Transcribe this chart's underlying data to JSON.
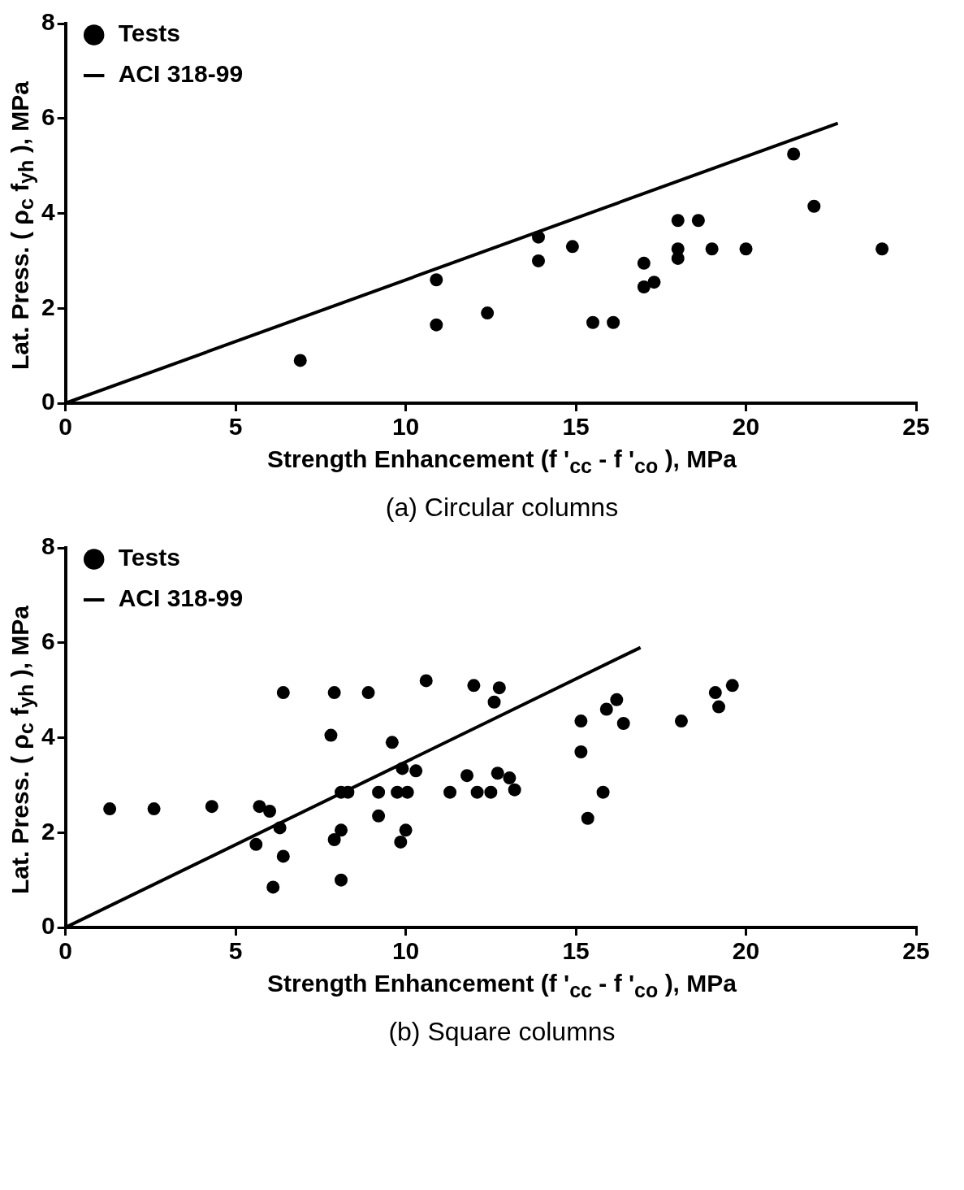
{
  "chart_data": [
    {
      "type": "scatter",
      "xlabel": "Strength Enhancement (f '$_{cc}$ - f '$_{co}$ ), MPa",
      "ylabel": "Lat. Press. ( ρ$_{c}$ f$_{yh}$ ), MPa",
      "annotations": [
        "(a) Circular columns"
      ],
      "xlim": [
        0,
        25
      ],
      "ylim": [
        0,
        8
      ],
      "xticks": [
        0,
        5,
        10,
        15,
        20,
        25
      ],
      "yticks": [
        0,
        2,
        4,
        6,
        8
      ],
      "legend": "top left",
      "series": [
        {
          "name": "Tests",
          "type": "scatter",
          "color": "#000000",
          "marker": "circle",
          "x": [
            6.9,
            10.9,
            10.9,
            12.4,
            13.9,
            13.9,
            14.9,
            15.5,
            16.1,
            17.0,
            17.0,
            17.3,
            18.0,
            18.0,
            18.0,
            18.6,
            19.0,
            20.0,
            21.4,
            22.0,
            24.0
          ],
          "values": [
            0.9,
            2.6,
            1.65,
            1.9,
            3.5,
            3.0,
            3.3,
            1.7,
            1.7,
            2.95,
            2.45,
            2.55,
            3.85,
            3.25,
            3.05,
            3.85,
            3.25,
            3.25,
            5.25,
            4.15,
            3.25
          ]
        },
        {
          "name": "ACI 318-99",
          "type": "line",
          "color": "#000000",
          "marker": "none",
          "x": [
            0,
            22.7
          ],
          "values": [
            0,
            5.9
          ]
        }
      ]
    },
    {
      "type": "scatter",
      "xlabel": "Strength Enhancement (f '$_{cc}$ - f '$_{co}$ ), MPa",
      "ylabel": "Lat. Press. ( ρ$_{c}$ f$_{yh}$ ), MPa",
      "annotations": [
        "(b) Square columns"
      ],
      "xlim": [
        0,
        25
      ],
      "ylim": [
        0,
        8
      ],
      "xticks": [
        0,
        5,
        10,
        15,
        20,
        25
      ],
      "yticks": [
        0,
        2,
        4,
        6,
        8
      ],
      "legend": "top left",
      "series": [
        {
          "name": "Tests",
          "type": "scatter",
          "color": "#000000",
          "marker": "circle",
          "x": [
            1.3,
            2.6,
            4.3,
            5.7,
            6.0,
            5.6,
            6.3,
            6.4,
            6.4,
            6.1,
            7.8,
            7.9,
            7.9,
            8.1,
            8.1,
            8.3,
            8.1,
            8.9,
            9.6,
            9.2,
            9.2,
            9.75,
            10.05,
            9.9,
            10.0,
            9.85,
            10.3,
            10.6,
            11.3,
            11.8,
            12.0,
            12.1,
            12.6,
            12.75,
            12.5,
            12.7,
            13.05,
            13.2,
            15.15,
            15.15,
            15.9,
            16.2,
            16.4,
            15.8,
            15.35,
            18.1,
            19.1,
            19.2,
            19.6
          ],
          "values": [
            2.5,
            2.5,
            2.55,
            2.55,
            2.45,
            1.75,
            2.1,
            4.95,
            1.5,
            0.85,
            4.05,
            4.95,
            1.85,
            2.05,
            2.85,
            2.85,
            1.0,
            4.95,
            3.9,
            2.85,
            2.35,
            2.85,
            2.85,
            3.35,
            2.05,
            1.8,
            3.3,
            5.2,
            2.85,
            3.2,
            5.1,
            2.85,
            4.75,
            5.05,
            2.85,
            3.25,
            3.15,
            2.9,
            4.35,
            3.7,
            4.6,
            4.8,
            4.3,
            2.85,
            2.3,
            4.35,
            4.95,
            4.65,
            5.1
          ]
        },
        {
          "name": "ACI 318-99",
          "type": "line",
          "color": "#000000",
          "marker": "none",
          "x": [
            0,
            16.9
          ],
          "values": [
            0,
            5.9
          ]
        }
      ]
    }
  ]
}
